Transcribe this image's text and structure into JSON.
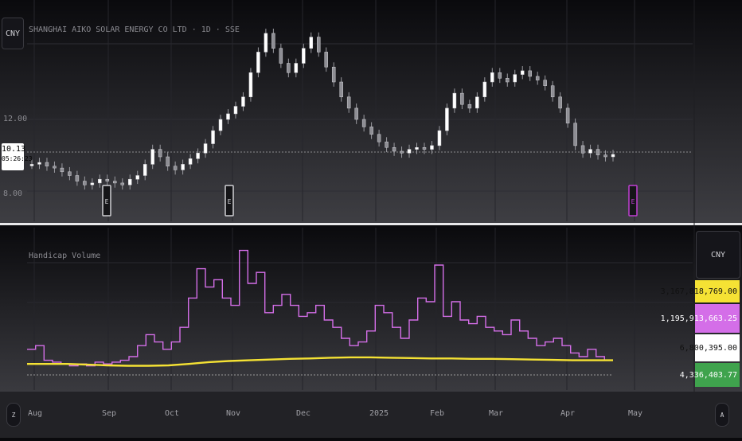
{
  "symbol_title": "SHANGHAI AIKO SOLAR ENERGY CO LTD · 1D · SSE",
  "currency_top": "CNY",
  "currency_bottom": "CNY",
  "price_axis": {
    "tick_12": "12.00",
    "tick_8": "8.00"
  },
  "last_price": {
    "value": "10.13",
    "countdown": "05:26:23"
  },
  "indicator_title": "Handicap Volume",
  "volume_badges": [
    {
      "value": "3,167,818,769.00",
      "color": "#f5e234"
    },
    {
      "value": "1,195,913,663.25",
      "color": "#d46ee8"
    },
    {
      "value": "6,800,395.00",
      "color": "#ffffff"
    },
    {
      "value": "4,336,403.77",
      "color": "#3fa34d"
    }
  ],
  "x_axis": [
    "Aug",
    "Sep",
    "Oct",
    "Nov",
    "Dec",
    "2025",
    "Feb",
    "Mar",
    "Apr",
    "May"
  ],
  "earnings_marker": "E",
  "bottom_left_icon": "Z",
  "bottom_right_icon": "A",
  "colors": {
    "volume_line": "#d46ee8",
    "average_line": "#f5e234",
    "baseline": "#9a9a9a"
  },
  "chart_data": [
    {
      "type": "candlestick",
      "title": "SHANGHAI AIKO SOLAR ENERGY CO LTD · 1D · SSE",
      "y_ticks": [
        12.0,
        8.0
      ],
      "last_price": 10.13,
      "close_approx": [
        9.6,
        9.7,
        9.5,
        9.4,
        9.2,
        9.0,
        8.7,
        8.5,
        8.6,
        8.8,
        8.7,
        8.6,
        8.5,
        8.8,
        9.0,
        9.6,
        10.4,
        10.0,
        9.5,
        9.3,
        9.6,
        9.9,
        10.2,
        10.7,
        11.4,
        12.0,
        12.3,
        12.7,
        13.2,
        14.5,
        15.6,
        16.6,
        15.8,
        15.0,
        14.5,
        15.0,
        15.8,
        16.4,
        15.6,
        14.8,
        14.0,
        13.2,
        12.6,
        12.0,
        11.6,
        11.2,
        10.8,
        10.5,
        10.3,
        10.2,
        10.4,
        10.5,
        10.4,
        10.6,
        11.4,
        12.6,
        13.4,
        12.8,
        12.6,
        13.2,
        14.0,
        14.5,
        14.2,
        14.0,
        14.4,
        14.6,
        14.3,
        14.1,
        13.8,
        13.2,
        12.6,
        11.8,
        10.6,
        10.2,
        10.4,
        10.1,
        10.0,
        10.13
      ],
      "earnings_markers": [
        "Sep",
        "Oct",
        "Apr"
      ]
    },
    {
      "type": "line",
      "title": "Handicap Volume",
      "series": [
        {
          "name": "",
          "values": [
            0.7,
            0.8,
            0.4,
            0.35,
            0.3,
            0.25,
            0.3,
            0.25,
            0.35,
            0.3,
            0.35,
            0.4,
            0.5,
            0.8,
            1.1,
            0.9,
            0.7,
            0.9,
            1.3,
            2.1,
            2.9,
            2.4,
            2.6,
            2.1,
            1.9,
            3.4,
            2.5,
            2.8,
            1.7,
            1.9,
            2.2,
            1.9,
            1.6,
            1.7,
            1.9,
            1.5,
            1.3,
            1.0,
            0.8,
            0.9,
            1.2,
            1.9,
            1.7,
            1.3,
            1.0,
            1.5,
            2.1,
            2.0,
            3.0,
            1.6,
            2.0,
            1.5,
            1.4,
            1.6,
            1.3,
            1.2,
            1.1,
            1.5,
            1.2,
            1.0,
            0.8,
            0.9,
            1.0,
            0.8,
            0.6,
            0.5,
            0.7,
            0.5,
            0.4
          ]
        },
        {
          "name": "",
          "values": [
            0.3,
            0.3,
            0.3,
            0.28,
            0.26,
            0.25,
            0.25,
            0.26,
            0.3,
            0.35,
            0.38,
            0.4,
            0.42,
            0.44,
            0.45,
            0.47,
            0.48,
            0.48,
            0.47,
            0.46,
            0.45,
            0.45,
            0.44,
            0.44,
            0.43,
            0.42,
            0.41,
            0.4,
            0.4,
            0.4
          ]
        }
      ]
    }
  ]
}
